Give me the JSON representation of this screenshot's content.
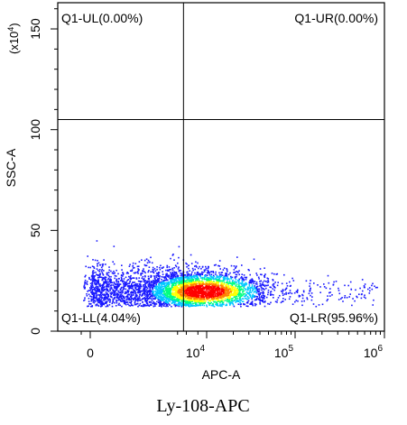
{
  "chart_data": {
    "type": "scatter",
    "title": "Ly-108-APC",
    "xlabel": "APC-A",
    "ylabel": "SSC-A",
    "y_scale_note": "(x10^4)",
    "y_scale_base": "(x10",
    "y_scale_exp": "4",
    "y_scale_close": ")",
    "x_axis": {
      "scale": "biexponential",
      "ticks": [
        {
          "value": 0,
          "base": "0",
          "exp": ""
        },
        {
          "value": 10000,
          "base": "10",
          "exp": "4"
        },
        {
          "value": 100000,
          "base": "10",
          "exp": "5"
        },
        {
          "value": 1000000,
          "base": "10",
          "exp": "6"
        }
      ]
    },
    "y_axis": {
      "scale": "linear",
      "ylim": [
        0,
        163
      ],
      "ticks": [
        0,
        50,
        100,
        150
      ]
    },
    "gates": {
      "x_threshold": 1600,
      "y_threshold": 105
    },
    "quadrants": [
      {
        "id": "UL",
        "label": "Q1-UL(0.00%)",
        "percent": 0.0
      },
      {
        "id": "UR",
        "label": "Q1-UR(0.00%)",
        "percent": 0.0
      },
      {
        "id": "LL",
        "label": "Q1-LL(4.04%)",
        "percent": 4.04
      },
      {
        "id": "LR",
        "label": "Q1-LR(95.96%)",
        "percent": 95.96
      }
    ],
    "population": {
      "center_apc": 8000,
      "center_ssc": 20,
      "colormap": [
        "#1a1aff",
        "#00c8ff",
        "#00ff80",
        "#ffff00",
        "#ff8000",
        "#ff0000"
      ]
    }
  }
}
